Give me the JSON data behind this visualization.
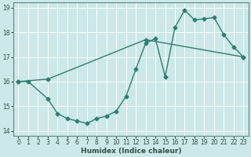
{
  "xlabel": "Humidex (Indice chaleur)",
  "ylabel": "",
  "bg_color": "#cce8e8",
  "line_color": "#2e7d6e",
  "grid_color": "#ffffff",
  "xlim": [
    -0.5,
    23.5
  ],
  "ylim": [
    13.8,
    19.2
  ],
  "xticks": [
    0,
    1,
    2,
    3,
    4,
    5,
    6,
    7,
    8,
    9,
    10,
    11,
    12,
    13,
    14,
    15,
    16,
    17,
    18,
    19,
    20,
    21,
    22,
    23
  ],
  "yticks": [
    14,
    15,
    16,
    17,
    18,
    19
  ],
  "series1_x": [
    0,
    1,
    3,
    4,
    5,
    6,
    7,
    8,
    9,
    10,
    11,
    12,
    13,
    14,
    15,
    16,
    17,
    18,
    19,
    20,
    21,
    22,
    23
  ],
  "series1_y": [
    16.0,
    16.0,
    15.3,
    14.7,
    14.5,
    14.4,
    14.3,
    14.5,
    14.6,
    14.8,
    15.4,
    16.5,
    17.55,
    17.75,
    16.2,
    18.2,
    18.9,
    18.5,
    18.55,
    18.6,
    17.9,
    17.4,
    17.0
  ],
  "series2_x": [
    0,
    3,
    13,
    23
  ],
  "series2_y": [
    16.0,
    16.1,
    17.7,
    17.0
  ],
  "marker": "D",
  "markersize": 2.5,
  "linewidth": 1.0,
  "title_fontsize": 7,
  "label_fontsize": 6.5,
  "tick_fontsize": 5.5
}
